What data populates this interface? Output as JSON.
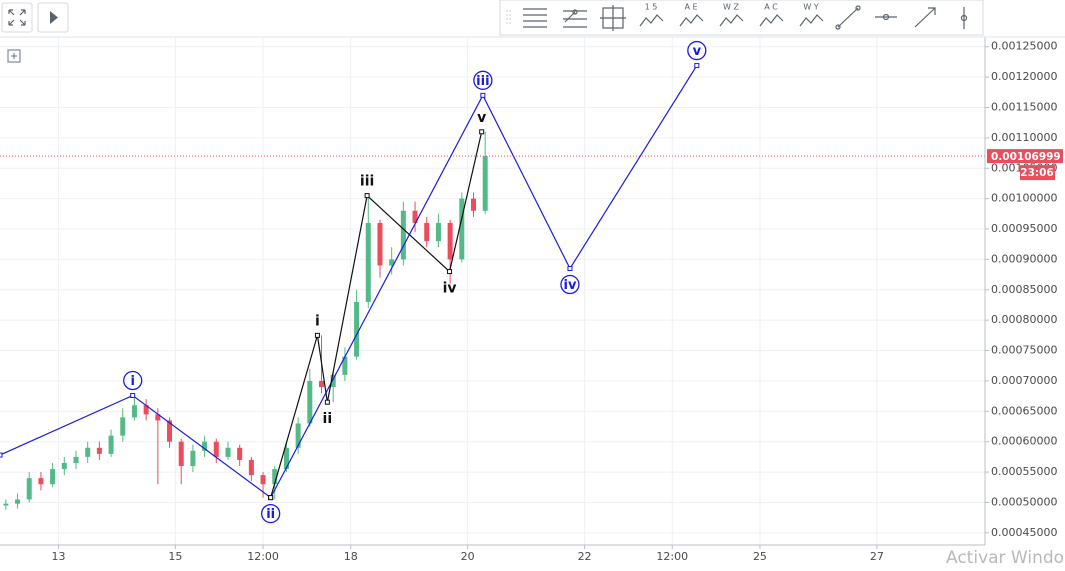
{
  "chart_data": {
    "type": "candlestick",
    "xlim": [
      12,
      28.85
    ],
    "xticks": [
      13,
      15,
      {
        "value": 16.5,
        "label": "12:00"
      },
      18,
      20,
      22,
      {
        "value": 23.5,
        "label": "12:00"
      },
      25,
      27
    ],
    "ylim": [
      0.00043,
      0.001266
    ],
    "yticks": [
      {
        "value": 0.00045,
        "label": "0.00045000"
      },
      {
        "value": 0.0005,
        "label": "0.00050000"
      },
      {
        "value": 0.00055,
        "label": "0.00055000"
      },
      {
        "value": 0.0006,
        "label": "0.00060000"
      },
      {
        "value": 0.00065,
        "label": "0.00065000"
      },
      {
        "value": 0.0007,
        "label": "0.00070000"
      },
      {
        "value": 0.00075,
        "label": "0.00075000"
      },
      {
        "value": 0.0008,
        "label": "0.00080000"
      },
      {
        "value": 0.00085,
        "label": "0.00085000"
      },
      {
        "value": 0.0009,
        "label": "0.00090000"
      },
      {
        "value": 0.00095,
        "label": "0.00095000"
      },
      {
        "value": 0.001,
        "label": "0.00100000"
      },
      {
        "value": 0.00105,
        "label": "0.00105000"
      },
      {
        "value": 0.0011,
        "label": "0.00110000"
      },
      {
        "value": 0.00115,
        "label": "0.00115000"
      },
      {
        "value": 0.0012,
        "label": "0.00120000"
      },
      {
        "value": 0.00125,
        "label": "0.00125000"
      }
    ],
    "grid": true,
    "up_color": "#53b987",
    "down_color": "#eb4d5c",
    "x": [
      12.1,
      12.3,
      12.5,
      12.7,
      12.9,
      13.1,
      13.3,
      13.5,
      13.7,
      13.9,
      14.1,
      14.3,
      14.5,
      14.7,
      14.9,
      15.1,
      15.3,
      15.5,
      15.7,
      15.9,
      16.1,
      16.3,
      16.5,
      16.7,
      16.9,
      17.1,
      17.3,
      17.5,
      17.7,
      17.9,
      18.1,
      18.3,
      18.5,
      18.7,
      18.9,
      19.1,
      19.3,
      19.5,
      19.7,
      19.9,
      20.1,
      20.3
    ],
    "open": [
      0.000495,
      0.000498,
      0.000505,
      0.00054,
      0.00053,
      0.000555,
      0.000565,
      0.000575,
      0.00059,
      0.00058,
      0.00061,
      0.00064,
      0.00066,
      0.000645,
      0.000635,
      0.0006,
      0.00056,
      0.000585,
      0.0006,
      0.000575,
      0.00059,
      0.00057,
      0.000545,
      0.00053,
      0.000555,
      0.00059,
      0.00063,
      0.0007,
      0.00069,
      0.00071,
      0.00074,
      0.00083,
      0.00096,
      0.00089,
      0.0009,
      0.00098,
      0.00096,
      0.00093,
      0.00096,
      0.0009,
      0.001,
      0.00098
    ],
    "high": [
      0.000505,
      0.000515,
      0.00055,
      0.00055,
      0.000565,
      0.000575,
      0.000585,
      0.0006,
      0.0006,
      0.00062,
      0.000655,
      0.000675,
      0.00067,
      0.000655,
      0.00064,
      0.000605,
      0.000595,
      0.00061,
      0.000605,
      0.0006,
      0.000595,
      0.000575,
      0.00055,
      0.00056,
      0.0006,
      0.00064,
      0.00072,
      0.000775,
      0.000715,
      0.000755,
      0.00085,
      0.001005,
      0.000965,
      0.00092,
      0.000995,
      0.000995,
      0.00097,
      0.000975,
      0.000965,
      0.00101,
      0.00101,
      0.00111
    ],
    "low": [
      0.000488,
      0.00049,
      0.0005,
      0.00052,
      0.000525,
      0.000545,
      0.000555,
      0.000565,
      0.00057,
      0.000575,
      0.0006,
      0.000635,
      0.000635,
      0.00053,
      0.00059,
      0.00053,
      0.00055,
      0.000575,
      0.000565,
      0.00057,
      0.00056,
      0.000535,
      0.000508,
      0.000505,
      0.00055,
      0.00058,
      0.000625,
      0.00068,
      0.000665,
      0.0007,
      0.000735,
      0.00082,
      0.00087,
      0.000875,
      0.00089,
      0.000945,
      0.00092,
      0.00092,
      0.00086,
      0.000895,
      0.00097,
      0.000975
    ],
    "close": [
      0.000498,
      0.000505,
      0.00054,
      0.00053,
      0.000555,
      0.000565,
      0.000575,
      0.00059,
      0.00058,
      0.00061,
      0.00064,
      0.00066,
      0.000645,
      0.000635,
      0.0006,
      0.00056,
      0.000585,
      0.0006,
      0.000575,
      0.00059,
      0.00057,
      0.000545,
      0.00053,
      0.000555,
      0.00059,
      0.00063,
      0.0007,
      0.00069,
      0.00071,
      0.00074,
      0.00083,
      0.00096,
      0.00089,
      0.0009,
      0.00098,
      0.00096,
      0.00093,
      0.00096,
      0.0009,
      0.001,
      0.00098,
      0.00107
    ],
    "waves": [
      {
        "color": "#1a1ae6",
        "circled": true,
        "x": [
          12,
          14.27,
          16.63,
          20.26,
          21.75,
          23.92
        ],
        "y": [
          0.000578,
          0.000676,
          0.000508,
          0.00117,
          0.000885,
          0.001219
        ],
        "labels": [
          null,
          "i",
          "ii",
          "iii",
          "iv",
          "v"
        ]
      },
      {
        "color": "#111111",
        "circled": false,
        "x": [
          16.63,
          17.43,
          17.6,
          18.28,
          19.69,
          20.24
        ],
        "y": [
          0.000508,
          0.000775,
          0.000665,
          0.001005,
          0.00088,
          0.00111
        ],
        "labels": [
          null,
          "i",
          "ii",
          "iii",
          "iv",
          "v"
        ]
      }
    ],
    "last_price": {
      "value": 0.00106999,
      "label": "0.00106999",
      "color": "#eb4d5c"
    },
    "countdown": "23:06"
  },
  "toolbar": {
    "labels": [
      "1 5",
      "A E",
      "W Z",
      "A C",
      "W Y"
    ]
  },
  "watermark": "Activar Windo"
}
